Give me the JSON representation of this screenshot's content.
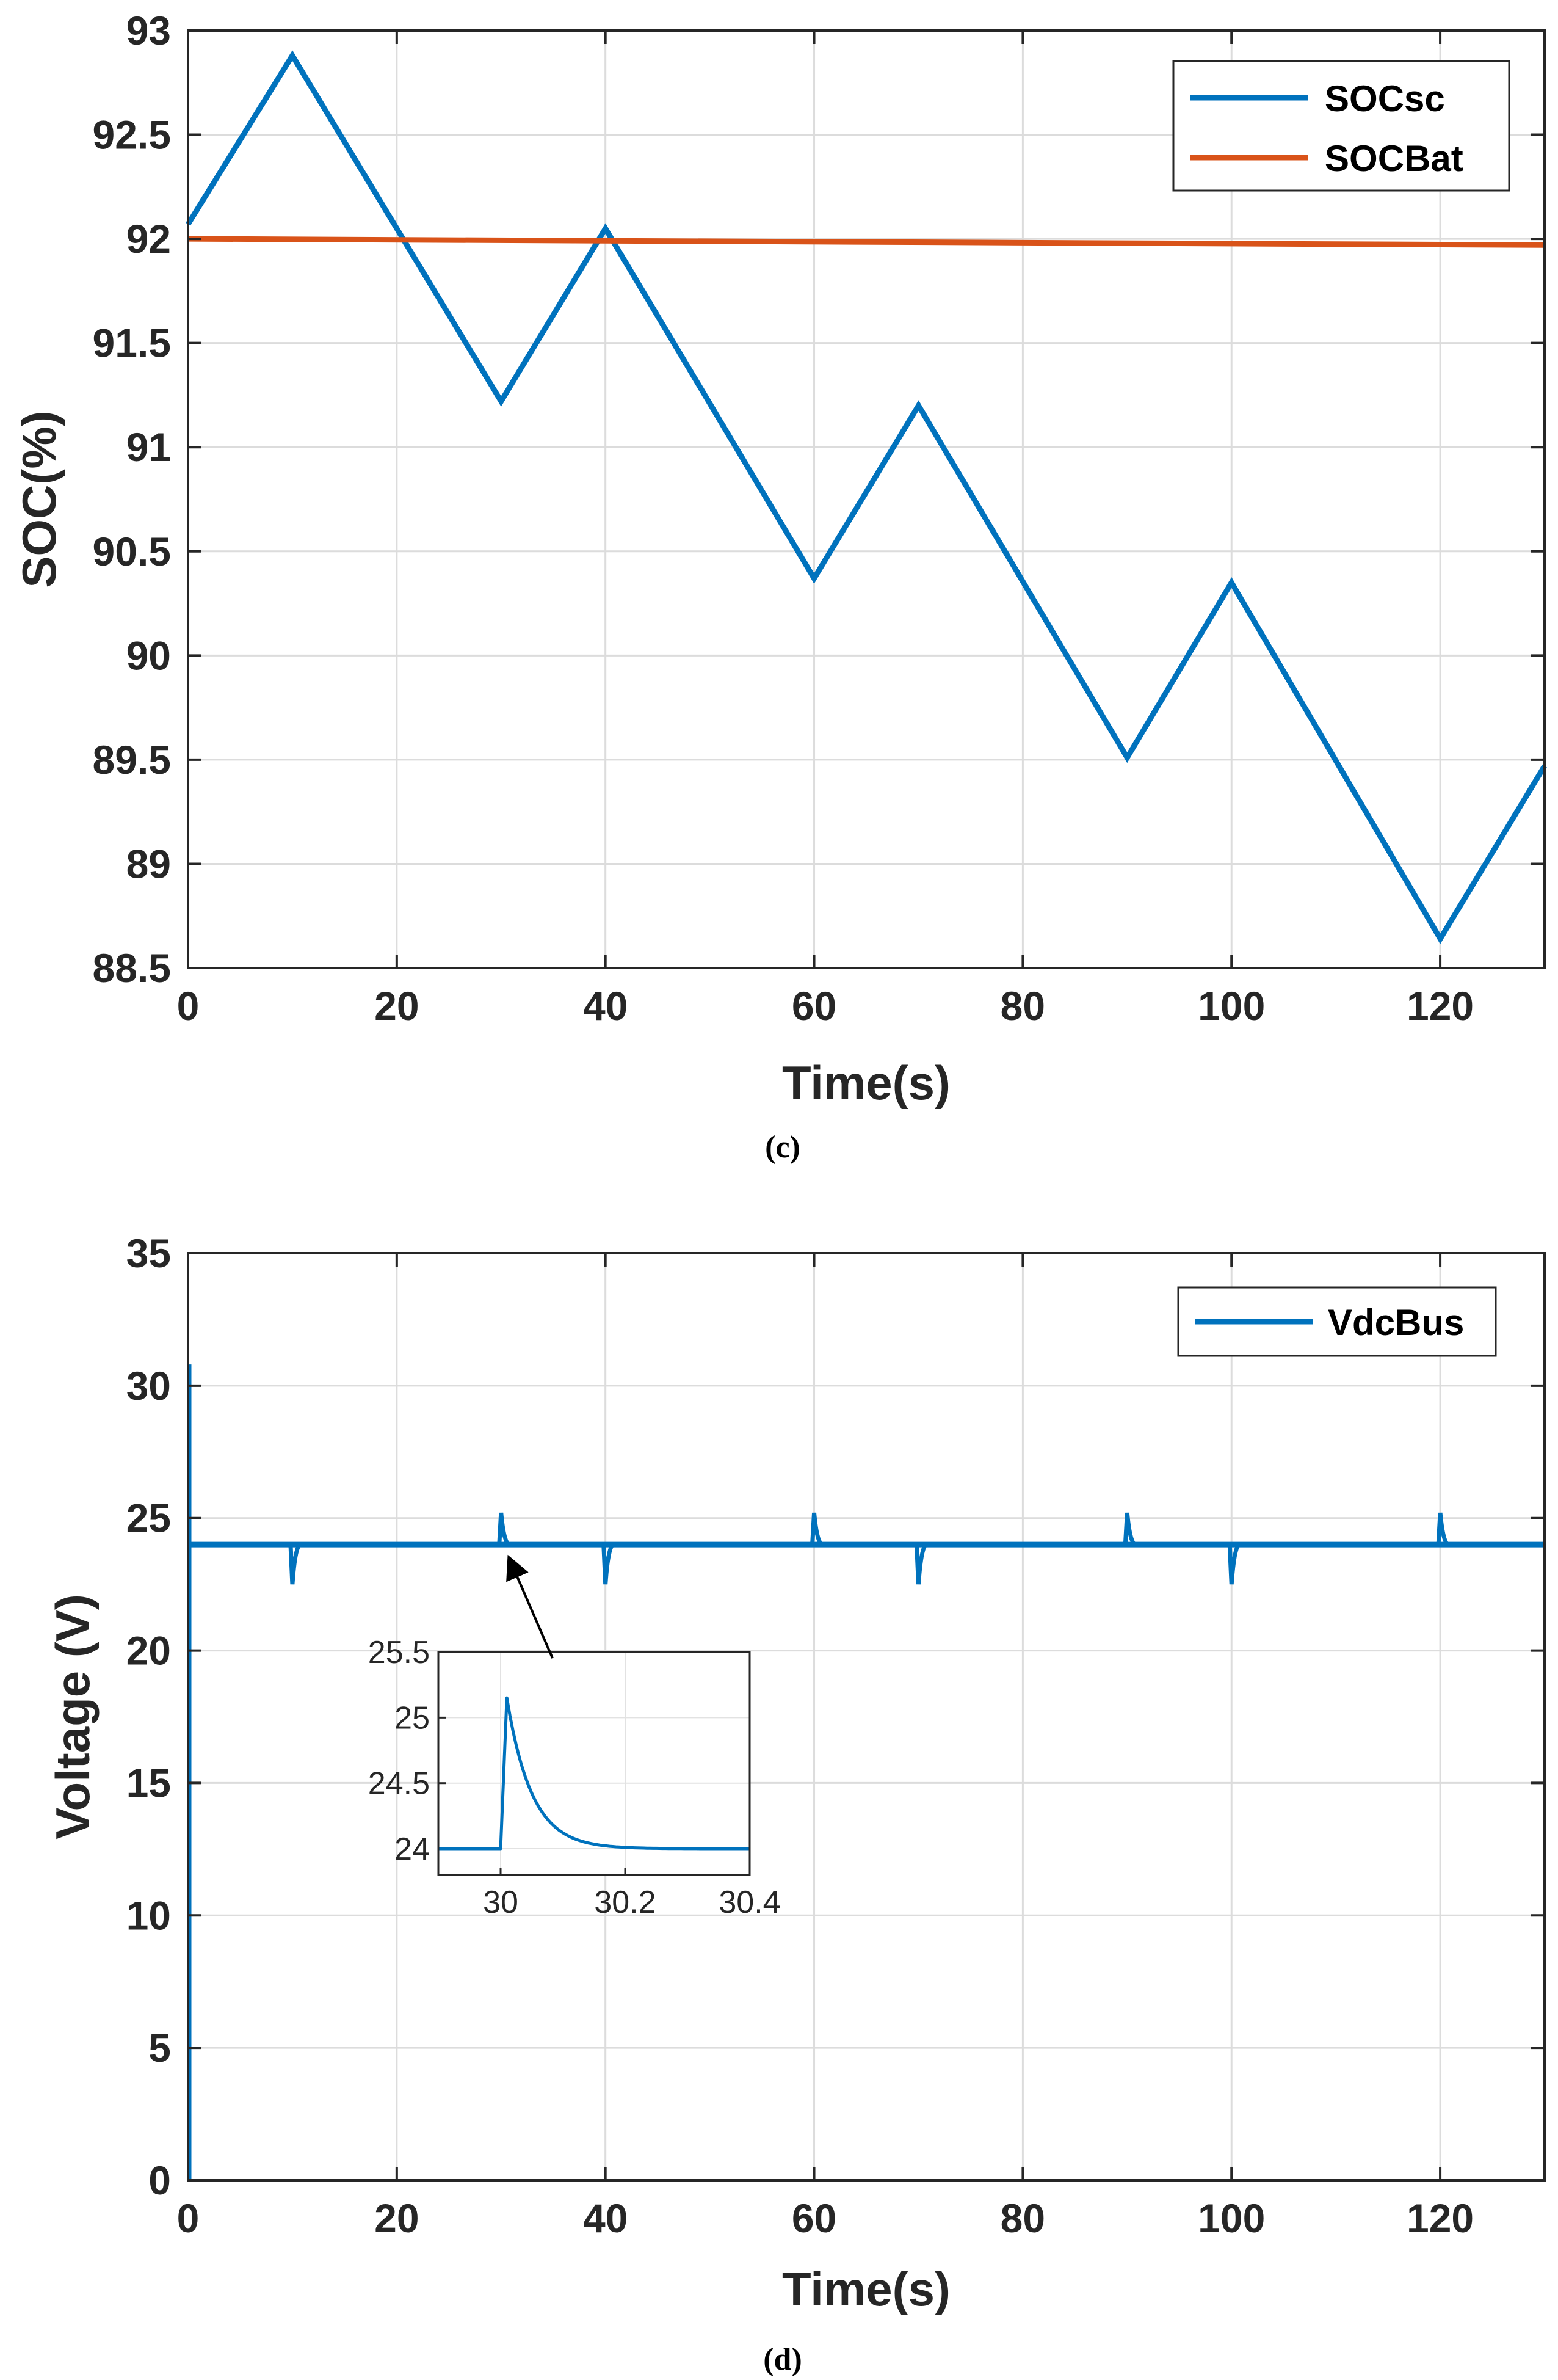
{
  "chart_data": [
    {
      "type": "line",
      "caption": "(c)",
      "xlabel": "Time(s)",
      "ylabel": "SOC(%)",
      "xlim": [
        0,
        130
      ],
      "ylim": [
        88.5,
        93
      ],
      "xticks": [
        "0",
        "20",
        "40",
        "60",
        "80",
        "100",
        "120"
      ],
      "yticks": [
        "88.5",
        "89",
        "89.5",
        "90",
        "90.5",
        "91",
        "91.5",
        "92",
        "92.5",
        "93"
      ],
      "grid": true,
      "legend_position": "top-right",
      "series": [
        {
          "name": "SOCsc",
          "color": "#0072BD",
          "x": [
            0,
            10,
            30,
            40,
            60,
            70,
            90,
            100,
            120,
            130
          ],
          "y": [
            92.07,
            92.88,
            91.22,
            92.05,
            90.37,
            91.2,
            89.51,
            90.35,
            88.64,
            89.47
          ]
        },
        {
          "name": "SOCBat",
          "color": "#D95319",
          "x": [
            0,
            130
          ],
          "y": [
            92.0,
            91.97
          ]
        }
      ]
    },
    {
      "type": "line",
      "caption": "(d)",
      "xlabel": "Time(s)",
      "ylabel": "Voltage (V)",
      "xlim": [
        0,
        130
      ],
      "ylim": [
        0,
        35
      ],
      "xticks": [
        "0",
        "20",
        "40",
        "60",
        "80",
        "100",
        "120"
      ],
      "yticks": [
        "0",
        "5",
        "10",
        "15",
        "20",
        "25",
        "30",
        "35"
      ],
      "grid": true,
      "legend_position": "top-right",
      "series": [
        {
          "name": "VdcBus",
          "color": "#0072BD",
          "baseline": 24,
          "startup_peak": 30.8,
          "spikes_up": [
            {
              "t": 30,
              "v": 25.2
            },
            {
              "t": 60,
              "v": 25.2
            },
            {
              "t": 90,
              "v": 25.2
            },
            {
              "t": 120,
              "v": 25.2
            }
          ],
          "spikes_down": [
            {
              "t": 10,
              "v": 22.5
            },
            {
              "t": 40,
              "v": 22.5
            },
            {
              "t": 70,
              "v": 22.5
            },
            {
              "t": 100,
              "v": 22.5
            }
          ]
        }
      ],
      "inset": {
        "xlim": [
          29.9,
          30.4
        ],
        "ylim": [
          23.8,
          25.5
        ],
        "xticks": [
          "30",
          "30.2",
          "30.4"
        ],
        "yticks": [
          "24",
          "24.5",
          "25",
          "25.5"
        ],
        "peak_time": 30.01,
        "peak_value": 25.15,
        "baseline": 24,
        "decay_tau": 0.04,
        "annotation": "arrow points to the spike at t = 30 s"
      }
    }
  ]
}
